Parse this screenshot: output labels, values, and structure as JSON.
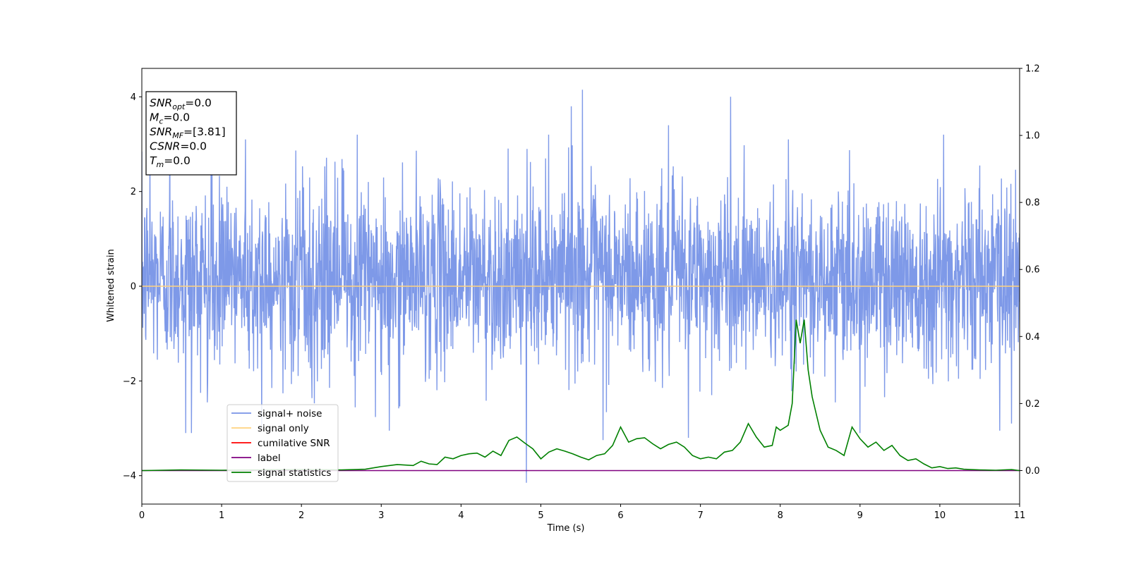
{
  "chart_data": {
    "type": "line",
    "title": "",
    "xlabel": "Time (s)",
    "ylabel": "Whitened strain",
    "y2label": "",
    "xlim": [
      0,
      11
    ],
    "ylim": [
      -4.6,
      4.6
    ],
    "y2lim": [
      -0.1,
      1.2
    ],
    "x_ticks": [
      "0",
      "1",
      "2",
      "3",
      "4",
      "5",
      "6",
      "7",
      "8",
      "9",
      "10",
      "11"
    ],
    "y_ticks": [
      "−4",
      "−2",
      "0",
      "2",
      "4"
    ],
    "y2_ticks": [
      "0.0",
      "0.2",
      "0.4",
      "0.6",
      "0.8",
      "1.0",
      "1.2"
    ],
    "grid": false,
    "legend_position": "lower-left",
    "legend": [
      {
        "name": "signal+ noise",
        "color": "#7793e7"
      },
      {
        "name": "signal only",
        "color": "#ffd27f"
      },
      {
        "name": "cumilative SNR",
        "color": "#ff0000"
      },
      {
        "name": "label",
        "color": "#800080"
      },
      {
        "name": "signal statistics",
        "color": "#008000"
      }
    ],
    "info_box": [
      {
        "base": "SNR",
        "sub": "opt",
        "value": "=0.0"
      },
      {
        "base": "M",
        "sub": "c",
        "value": "=0.0"
      },
      {
        "base": "SNR",
        "sub": "MF",
        "value": "=[3.81]"
      },
      {
        "base": "CSNR",
        "sub": "",
        "value": "=0.0"
      },
      {
        "base": "T",
        "sub": "m",
        "value": "=0.0"
      }
    ],
    "series": [
      {
        "name": "signal+ noise",
        "axis": "left",
        "color": "#7793e7",
        "style": "noise",
        "typical_amplitude": [
          -1.8,
          2.2
        ],
        "spikes": [
          {
            "x": 0.1,
            "y": 3.0
          },
          {
            "x": 0.35,
            "y": 3.4
          },
          {
            "x": 0.55,
            "y": -3.1
          },
          {
            "x": 0.62,
            "y": -3.1
          },
          {
            "x": 1.3,
            "y": 3.1
          },
          {
            "x": 1.5,
            "y": -3.0
          },
          {
            "x": 2.7,
            "y": 3.2
          },
          {
            "x": 3.1,
            "y": -3.05
          },
          {
            "x": 5.38,
            "y": 3.8
          },
          {
            "x": 5.52,
            "y": 4.15
          },
          {
            "x": 4.82,
            "y": -4.15
          },
          {
            "x": 5.1,
            "y": 3.2
          },
          {
            "x": 6.6,
            "y": 3.4
          },
          {
            "x": 7.38,
            "y": 4.0
          },
          {
            "x": 5.78,
            "y": -3.25
          },
          {
            "x": 6.85,
            "y": -3.2
          },
          {
            "x": 8.1,
            "y": 3.1
          },
          {
            "x": 9.0,
            "y": -3.1
          },
          {
            "x": 10.05,
            "y": 3.2
          },
          {
            "x": 10.75,
            "y": -3.05
          },
          {
            "x": 10.9,
            "y": -2.9
          }
        ]
      },
      {
        "name": "signal only",
        "axis": "left",
        "color": "#ffd27f",
        "x": [
          0,
          11
        ],
        "y": [
          0,
          0
        ]
      },
      {
        "name": "label",
        "axis": "right",
        "color": "#800080",
        "x": [
          0,
          11
        ],
        "y": [
          0,
          0
        ]
      },
      {
        "name": "signal statistics",
        "axis": "right",
        "color": "#008000",
        "x": [
          0,
          0.5,
          1.0,
          1.5,
          2.0,
          2.5,
          2.8,
          3.0,
          3.2,
          3.4,
          3.5,
          3.6,
          3.7,
          3.8,
          3.9,
          4.0,
          4.1,
          4.2,
          4.3,
          4.4,
          4.5,
          4.6,
          4.7,
          4.8,
          4.9,
          5.0,
          5.1,
          5.2,
          5.3,
          5.4,
          5.5,
          5.6,
          5.7,
          5.8,
          5.9,
          6.0,
          6.1,
          6.2,
          6.3,
          6.4,
          6.5,
          6.6,
          6.7,
          6.8,
          6.9,
          7.0,
          7.1,
          7.2,
          7.3,
          7.4,
          7.5,
          7.6,
          7.7,
          7.8,
          7.9,
          7.95,
          8.0,
          8.1,
          8.15,
          8.2,
          8.25,
          8.3,
          8.35,
          8.4,
          8.5,
          8.6,
          8.7,
          8.8,
          8.9,
          9.0,
          9.1,
          9.2,
          9.3,
          9.4,
          9.5,
          9.6,
          9.7,
          9.8,
          9.9,
          10.0,
          10.1,
          10.2,
          10.3,
          10.5,
          10.7,
          10.9,
          11.0
        ],
        "y": [
          0.0,
          0.002,
          0.001,
          0.002,
          0.003,
          0.002,
          0.004,
          0.012,
          0.018,
          0.015,
          0.028,
          0.02,
          0.018,
          0.04,
          0.035,
          0.045,
          0.05,
          0.052,
          0.04,
          0.058,
          0.045,
          0.09,
          0.1,
          0.082,
          0.065,
          0.035,
          0.055,
          0.065,
          0.058,
          0.05,
          0.04,
          0.032,
          0.045,
          0.05,
          0.075,
          0.13,
          0.085,
          0.095,
          0.098,
          0.08,
          0.065,
          0.078,
          0.085,
          0.07,
          0.045,
          0.035,
          0.04,
          0.035,
          0.055,
          0.06,
          0.085,
          0.14,
          0.1,
          0.07,
          0.075,
          0.13,
          0.12,
          0.135,
          0.2,
          0.45,
          0.38,
          0.45,
          0.3,
          0.22,
          0.12,
          0.07,
          0.06,
          0.045,
          0.13,
          0.095,
          0.07,
          0.085,
          0.06,
          0.075,
          0.045,
          0.03,
          0.035,
          0.02,
          0.008,
          0.012,
          0.006,
          0.008,
          0.004,
          0.002,
          0.001,
          0.003,
          0.0
        ]
      }
    ]
  }
}
